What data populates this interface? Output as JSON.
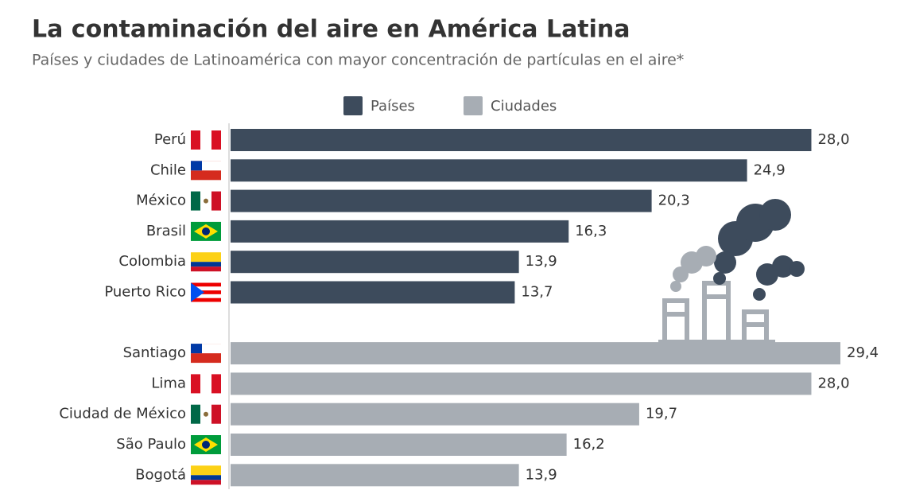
{
  "chart_data": {
    "type": "bar",
    "orientation": "horizontal",
    "title": "La contaminación del aire en América Latina",
    "subtitle": "Países y ciudades de Latinoamérica con mayor concentración de partículas en el aire*",
    "categories": [
      "Perú",
      "Chile",
      "México",
      "Brasil",
      "Colombia",
      "Puerto Rico",
      null,
      "Santiago",
      "Lima",
      "Ciudad de México",
      "São Paulo",
      "Bogotá"
    ],
    "series": [
      {
        "name": "Países",
        "color": "#3d4b5c",
        "values": [
          28.0,
          24.9,
          20.3,
          16.3,
          13.9,
          13.7,
          null,
          null,
          null,
          null,
          null,
          null
        ],
        "value_labels": [
          "28,0",
          "24,9",
          "20,3",
          "16,3",
          "13,9",
          "13,7",
          null,
          null,
          null,
          null,
          null,
          null
        ]
      },
      {
        "name": "Ciudades",
        "color": "#a7adb4",
        "values": [
          null,
          null,
          null,
          null,
          null,
          null,
          null,
          29.4,
          28.0,
          19.7,
          16.2,
          13.9
        ],
        "value_labels": [
          null,
          null,
          null,
          null,
          null,
          null,
          null,
          "29,4",
          "28,0",
          "19,7",
          "16,2",
          "13,9"
        ]
      }
    ]
  }
}
